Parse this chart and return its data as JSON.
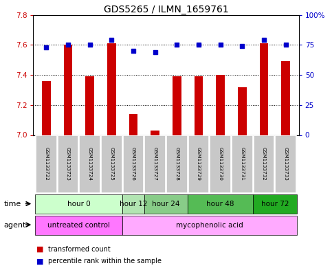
{
  "title": "GDS5265 / ILMN_1659761",
  "samples": [
    "GSM1133722",
    "GSM1133723",
    "GSM1133724",
    "GSM1133725",
    "GSM1133726",
    "GSM1133727",
    "GSM1133728",
    "GSM1133729",
    "GSM1133730",
    "GSM1133731",
    "GSM1133732",
    "GSM1133733"
  ],
  "transformed_count": [
    7.36,
    7.6,
    7.39,
    7.61,
    7.14,
    7.03,
    7.39,
    7.39,
    7.4,
    7.32,
    7.61,
    7.49
  ],
  "percentile_rank": [
    73,
    75,
    75,
    79,
    70,
    69,
    75,
    75,
    75,
    74,
    79,
    75
  ],
  "ylim_left": [
    7.0,
    7.8
  ],
  "ylim_right": [
    0,
    100
  ],
  "yticks_left": [
    7.0,
    7.2,
    7.4,
    7.6,
    7.8
  ],
  "yticks_right": [
    0,
    25,
    50,
    75,
    100
  ],
  "ytick_labels_right": [
    "0",
    "25",
    "50",
    "75",
    "100%"
  ],
  "bar_color": "#cc0000",
  "dot_color": "#0000cc",
  "bar_bottom": 7.0,
  "time_groups": [
    {
      "label": "hour 0",
      "start": 0,
      "end": 3
    },
    {
      "label": "hour 12",
      "start": 4,
      "end": 4
    },
    {
      "label": "hour 24",
      "start": 5,
      "end": 6
    },
    {
      "label": "hour 48",
      "start": 7,
      "end": 9
    },
    {
      "label": "hour 72",
      "start": 10,
      "end": 11
    }
  ],
  "time_colors": [
    "#ccffcc",
    "#b2e5b2",
    "#88cc88",
    "#55bb55",
    "#22aa22"
  ],
  "agent_groups": [
    {
      "label": "untreated control",
      "start": 0,
      "end": 3
    },
    {
      "label": "mycophenolic acid",
      "start": 4,
      "end": 11
    }
  ],
  "agent_colors": [
    "#ff77ff",
    "#ffaaff"
  ],
  "sample_bg_color": "#c8c8c8",
  "left_tick_color": "#cc0000",
  "right_tick_color": "#0000cc",
  "title_fontsize": 10,
  "tick_fontsize": 7.5,
  "annotation_fontsize": 7.5
}
